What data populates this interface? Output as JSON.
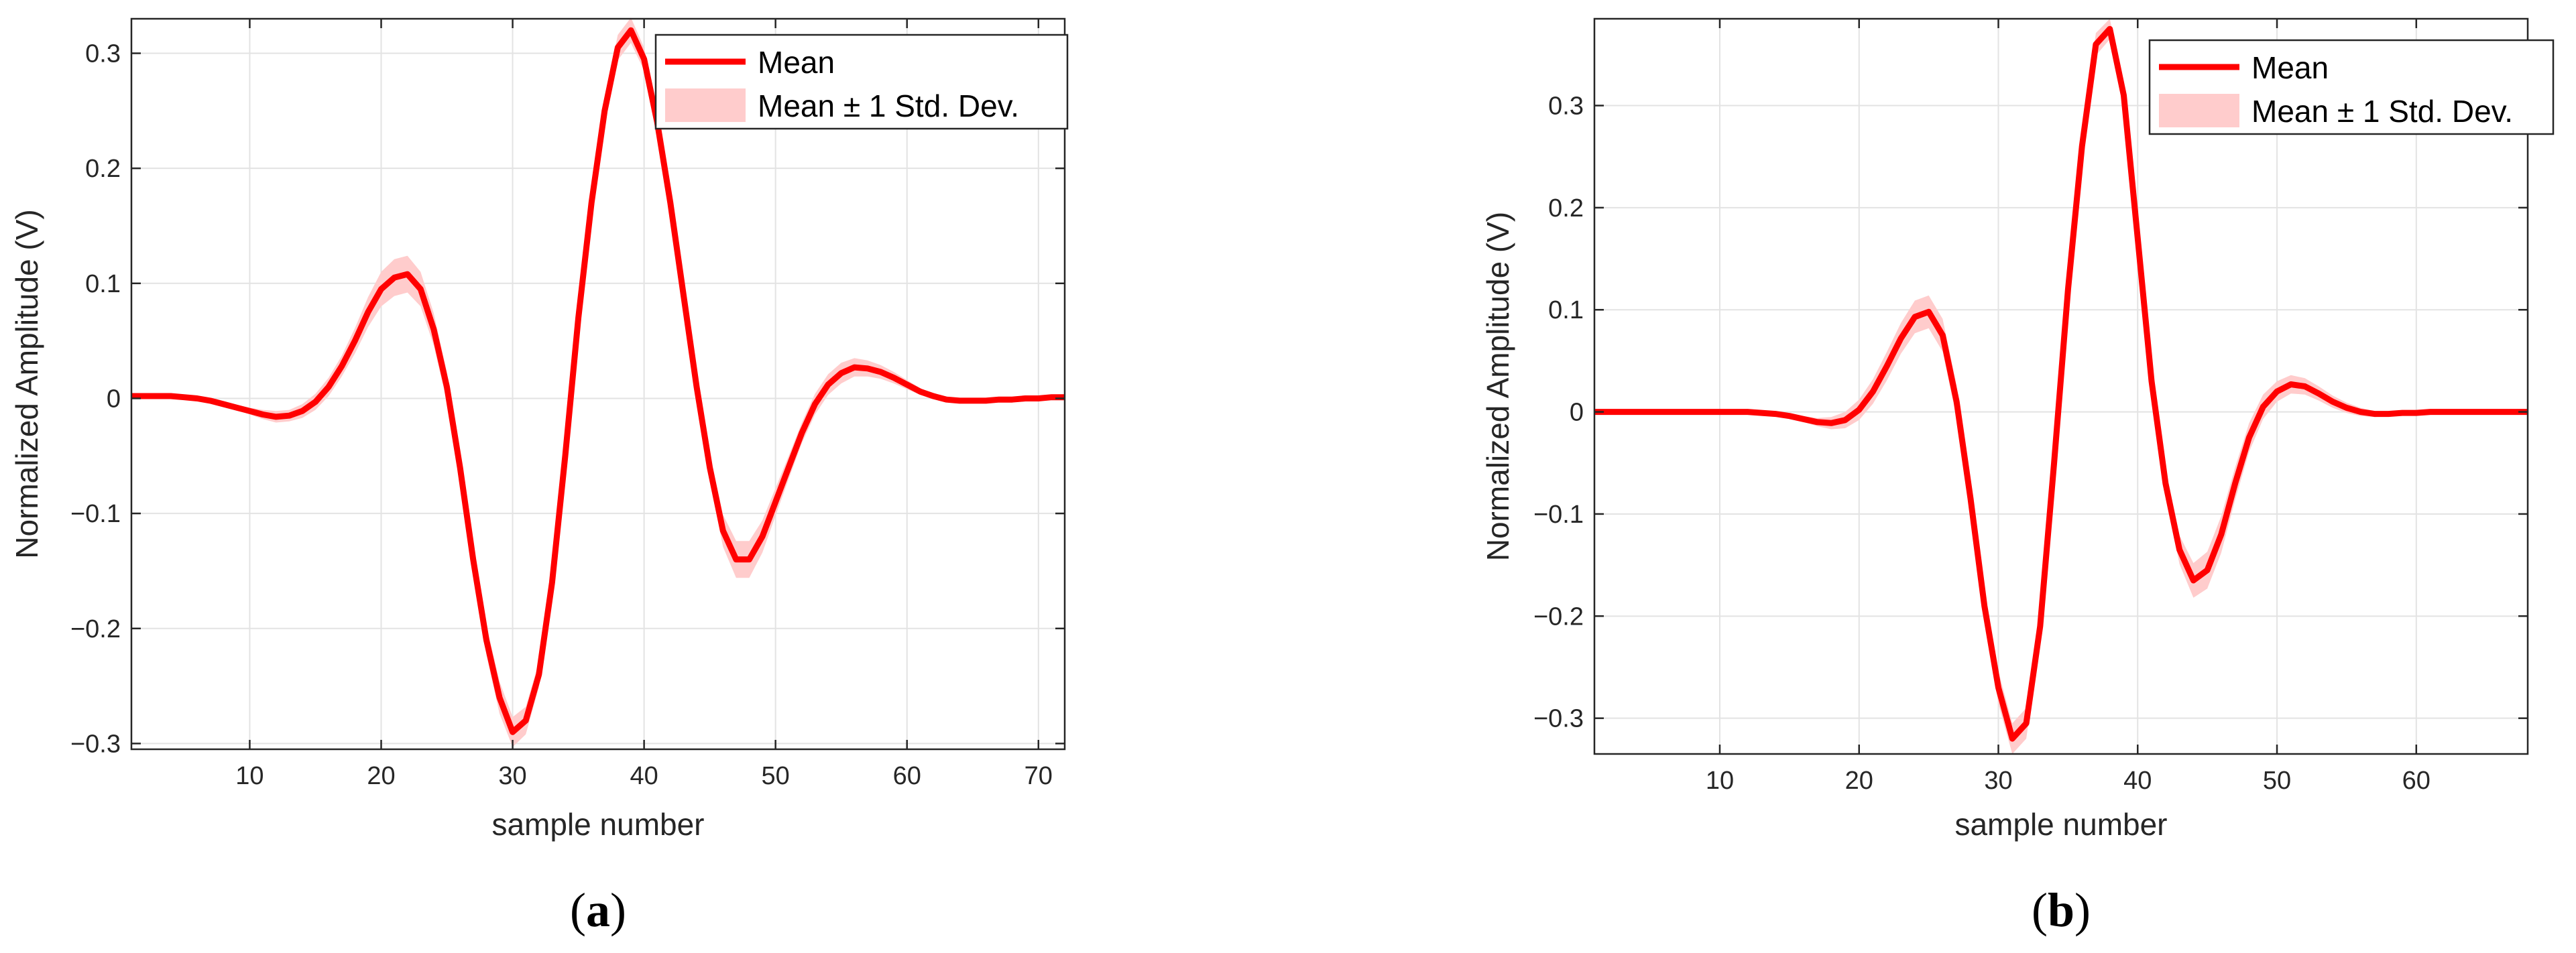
{
  "chart_data": [
    {
      "type": "line",
      "panel_label": "(a)",
      "xlabel": "sample number",
      "ylabel": "Normalized Amplitude (V)",
      "xlim": [
        1,
        72
      ],
      "ylim": [
        -0.305,
        0.33
      ],
      "xticks": [
        10,
        20,
        30,
        40,
        50,
        60,
        70
      ],
      "yticks": [
        -0.3,
        -0.2,
        -0.1,
        0,
        0.1,
        0.2,
        0.3
      ],
      "grid": true,
      "legend_position": "top-right",
      "legend": [
        "Mean",
        "Mean ± 1 Std. Dev."
      ],
      "colors": {
        "mean": "#ff0000",
        "band": "#ffcccc"
      },
      "x": [
        1,
        2,
        3,
        4,
        5,
        6,
        7,
        8,
        9,
        10,
        11,
        12,
        13,
        14,
        15,
        16,
        17,
        18,
        19,
        20,
        21,
        22,
        23,
        24,
        25,
        26,
        27,
        28,
        29,
        30,
        31,
        32,
        33,
        34,
        35,
        36,
        37,
        38,
        39,
        40,
        41,
        42,
        43,
        44,
        45,
        46,
        47,
        48,
        49,
        50,
        51,
        52,
        53,
        54,
        55,
        56,
        57,
        58,
        59,
        60,
        61,
        62,
        63,
        64,
        65,
        66,
        67,
        68,
        69,
        70,
        71,
        72
      ],
      "series": [
        {
          "name": "Mean",
          "values": [
            0.002,
            0.002,
            0.002,
            0.002,
            0.001,
            0,
            -0.002,
            -0.005,
            -0.008,
            -0.011,
            -0.014,
            -0.016,
            -0.015,
            -0.011,
            -0.003,
            0.01,
            0.028,
            0.05,
            0.075,
            0.095,
            0.105,
            0.108,
            0.095,
            0.06,
            0.01,
            -0.06,
            -0.14,
            -0.21,
            -0.26,
            -0.29,
            -0.28,
            -0.24,
            -0.16,
            -0.05,
            0.07,
            0.17,
            0.25,
            0.305,
            0.32,
            0.295,
            0.24,
            0.17,
            0.09,
            0.01,
            -0.06,
            -0.115,
            -0.14,
            -0.14,
            -0.12,
            -0.09,
            -0.06,
            -0.03,
            -0.005,
            0.012,
            0.022,
            0.027,
            0.026,
            0.023,
            0.018,
            0.012,
            0.006,
            0.002,
            -0.001,
            -0.002,
            -0.002,
            -0.002,
            -0.001,
            -0.001,
            0,
            0,
            0.001,
            0.001
          ]
        },
        {
          "name": "Mean ± 1 Std. Dev.",
          "std": [
            0.001,
            0.001,
            0.001,
            0.001,
            0.001,
            0.001,
            0.001,
            0.002,
            0.002,
            0.003,
            0.004,
            0.005,
            0.005,
            0.006,
            0.007,
            0.008,
            0.009,
            0.011,
            0.013,
            0.015,
            0.016,
            0.016,
            0.015,
            0.014,
            0.013,
            0.012,
            0.012,
            0.013,
            0.014,
            0.013,
            0.012,
            0.011,
            0.01,
            0.009,
            0.009,
            0.01,
            0.011,
            0.011,
            0.011,
            0.01,
            0.009,
            0.009,
            0.009,
            0.01,
            0.012,
            0.014,
            0.016,
            0.016,
            0.014,
            0.012,
            0.01,
            0.009,
            0.009,
            0.009,
            0.009,
            0.008,
            0.007,
            0.006,
            0.005,
            0.004,
            0.003,
            0.002,
            0.002,
            0.001,
            0.001,
            0.001,
            0.001,
            0.001,
            0.001,
            0.001,
            0.001,
            0.001
          ]
        }
      ]
    },
    {
      "type": "line",
      "panel_label": "(b)",
      "xlabel": "sample number",
      "ylabel": "Normalized Amplitude (V)",
      "xlim": [
        1,
        68
      ],
      "ylim": [
        -0.335,
        0.385
      ],
      "xticks": [
        10,
        20,
        30,
        40,
        50,
        60
      ],
      "yticks": [
        -0.3,
        -0.2,
        -0.1,
        0,
        0.1,
        0.2,
        0.3
      ],
      "grid": true,
      "legend_position": "top-right",
      "legend": [
        "Mean",
        "Mean ± 1 Std. Dev."
      ],
      "colors": {
        "mean": "#ff0000",
        "band": "#ffcccc"
      },
      "x": [
        1,
        2,
        3,
        4,
        5,
        6,
        7,
        8,
        9,
        10,
        11,
        12,
        13,
        14,
        15,
        16,
        17,
        18,
        19,
        20,
        21,
        22,
        23,
        24,
        25,
        26,
        27,
        28,
        29,
        30,
        31,
        32,
        33,
        34,
        35,
        36,
        37,
        38,
        39,
        40,
        41,
        42,
        43,
        44,
        45,
        46,
        47,
        48,
        49,
        50,
        51,
        52,
        53,
        54,
        55,
        56,
        57,
        58,
        59,
        60,
        61,
        62,
        63,
        64,
        65,
        66,
        67,
        68
      ],
      "series": [
        {
          "name": "Mean",
          "values": [
            0,
            0,
            0,
            0,
            0,
            0,
            0,
            0,
            0,
            0,
            0,
            0,
            -0.001,
            -0.002,
            -0.004,
            -0.007,
            -0.01,
            -0.011,
            -0.008,
            0.002,
            0.02,
            0.045,
            0.072,
            0.093,
            0.098,
            0.075,
            0.01,
            -0.085,
            -0.19,
            -0.27,
            -0.32,
            -0.305,
            -0.21,
            -0.05,
            0.12,
            0.26,
            0.36,
            0.375,
            0.31,
            0.17,
            0.03,
            -0.07,
            -0.135,
            -0.165,
            -0.155,
            -0.12,
            -0.07,
            -0.025,
            0.005,
            0.02,
            0.027,
            0.025,
            0.018,
            0.01,
            0.004,
            0,
            -0.002,
            -0.002,
            -0.001,
            -0.001,
            0,
            0,
            0,
            0,
            0,
            0,
            0,
            0
          ]
        },
        {
          "name": "Mean ± 1 Std. Dev.",
          "std": [
            0.001,
            0.001,
            0.001,
            0.001,
            0.001,
            0.001,
            0.001,
            0.001,
            0.001,
            0.001,
            0.001,
            0.001,
            0.001,
            0.001,
            0.002,
            0.003,
            0.004,
            0.006,
            0.008,
            0.01,
            0.012,
            0.014,
            0.015,
            0.016,
            0.016,
            0.016,
            0.016,
            0.016,
            0.016,
            0.016,
            0.015,
            0.015,
            0.015,
            0.014,
            0.013,
            0.012,
            0.011,
            0.01,
            0.01,
            0.01,
            0.01,
            0.012,
            0.014,
            0.017,
            0.018,
            0.018,
            0.016,
            0.014,
            0.012,
            0.01,
            0.009,
            0.008,
            0.007,
            0.006,
            0.005,
            0.004,
            0.003,
            0.002,
            0.001,
            0.001,
            0.001,
            0.001,
            0.001,
            0.001,
            0.001,
            0.001,
            0.001,
            0.001
          ]
        }
      ]
    }
  ]
}
